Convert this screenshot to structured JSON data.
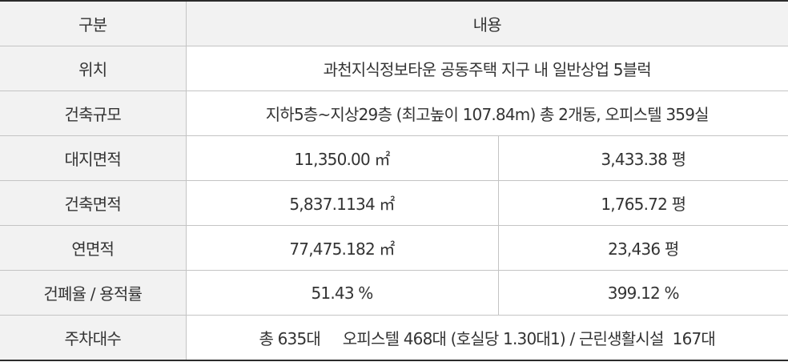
{
  "header": {
    "col1": "구분",
    "col2": "내용"
  },
  "rows": [
    {
      "label": "위치",
      "value": "과천지식정보타운 공동주택 지구 내  일반상업 5블럭"
    },
    {
      "label": "건축규모",
      "value": "지하5층~지상29층 (최고높이 107.84m)  총 2개동, 오피스텔 359실"
    },
    {
      "label": "대지면적",
      "value1": "11,350.00  ㎡",
      "value2": "3,433.38 평"
    },
    {
      "label": "건축면적",
      "value1": "5,837.1134 ㎡",
      "value2": "1,765.72 평"
    },
    {
      "label": "연면적",
      "value1": "77,475.182 ㎡",
      "value2": "23,436 평"
    },
    {
      "label": "건폐율 / 용적률",
      "value1": "51.43 %",
      "value2": "399.12 %"
    },
    {
      "label": "주차대수",
      "value": "총 635대     오피스텔 468대 (호실당 1.30대1) / 근린생활시설  167대"
    }
  ]
}
